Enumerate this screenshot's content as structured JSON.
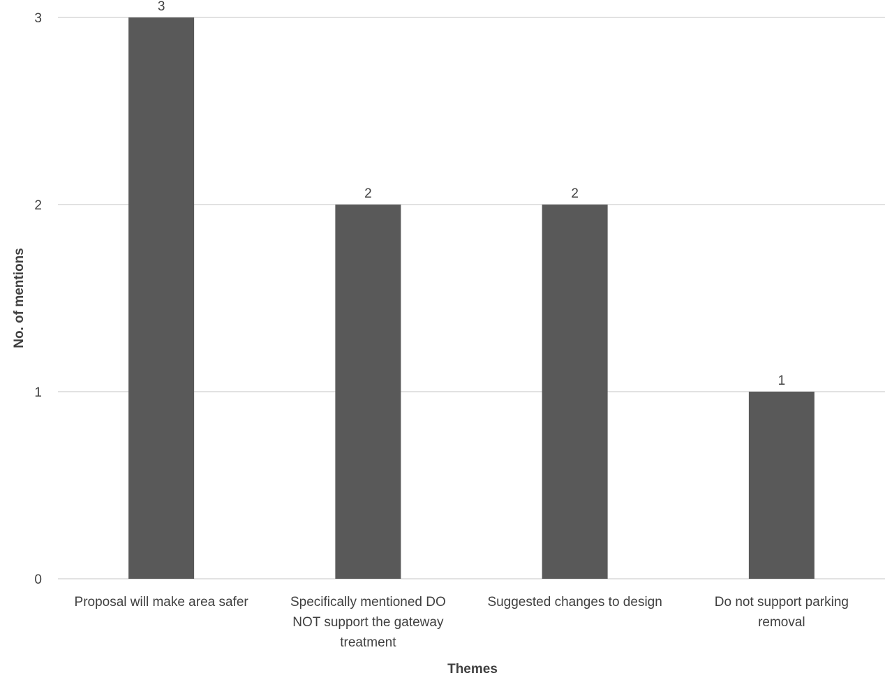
{
  "chart_data": {
    "type": "bar",
    "title": "",
    "xlabel": "Themes",
    "ylabel": "No. of mentions",
    "categories": [
      [
        "Proposal will make area safer"
      ],
      [
        "Specifically mentioned DO",
        "NOT support the gateway",
        "treatment"
      ],
      [
        "Suggested changes to design"
      ],
      [
        "Do not support parking",
        "removal"
      ]
    ],
    "values": [
      3,
      2,
      2,
      1
    ],
    "data_labels": [
      "3",
      "2",
      "2",
      "1"
    ],
    "ylim": [
      0,
      3
    ],
    "yticks": [
      0,
      1,
      2,
      3
    ],
    "grid": true,
    "legend": "none",
    "bar_color": "#595959",
    "grid_color": "#d9d9d9",
    "text_color": "#404040"
  }
}
